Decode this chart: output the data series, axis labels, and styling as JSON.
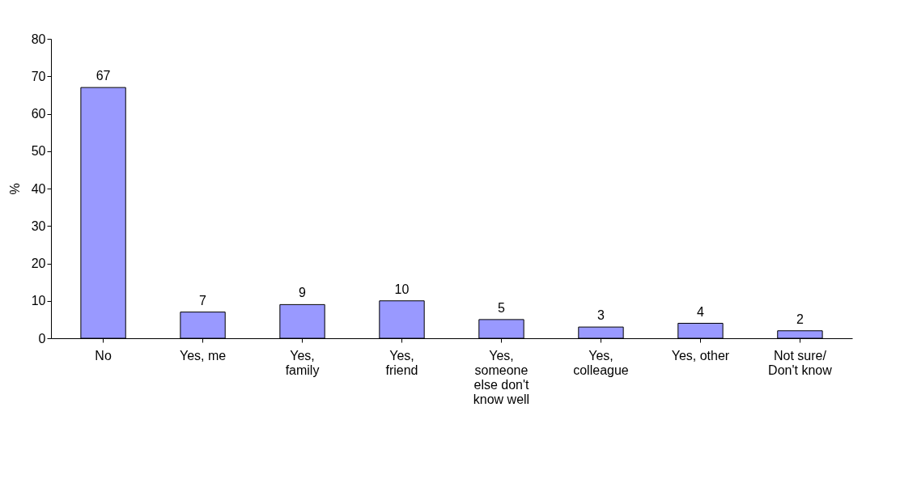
{
  "chart_data": {
    "type": "bar",
    "ylabel": "%",
    "categories": [
      "No",
      "Yes, me",
      "Yes, family",
      "Yes, friend",
      "Yes, someone else don't know well",
      "Yes, colleague",
      "Yes, other",
      "Not sure/ Don't know"
    ],
    "values": [
      67,
      7,
      9,
      10,
      5,
      3,
      4,
      2
    ],
    "color": "#9999ff",
    "ylim": [
      0,
      80
    ],
    "yticks": [
      0,
      10,
      20,
      30,
      40,
      50,
      60,
      70,
      80
    ],
    "data_labels": true,
    "grid": false
  }
}
